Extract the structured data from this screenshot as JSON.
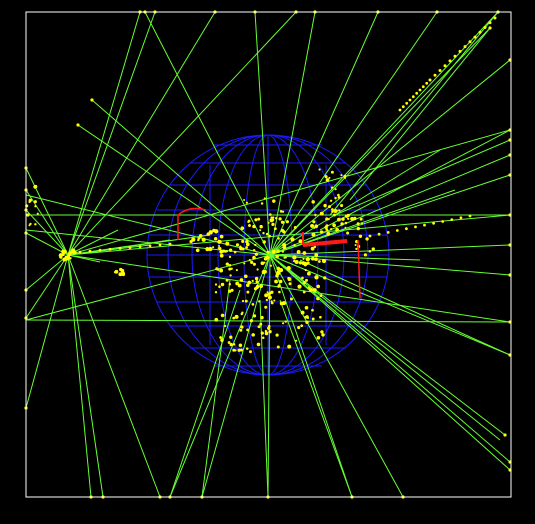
{
  "colors": {
    "background": "#000000",
    "frame": "#ffffff",
    "detector": "#1a1aff",
    "tracks": "#66ff33",
    "hits": "#ffff00",
    "highlight": "#ff1a1a"
  }
}
